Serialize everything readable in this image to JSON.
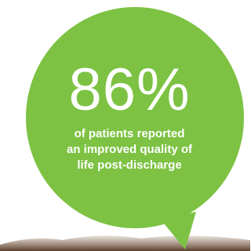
{
  "stat": {
    "figure": "86%",
    "caption_lines": [
      "of patients reported",
      "an improved quality of",
      "life post-discharge"
    ]
  }
}
